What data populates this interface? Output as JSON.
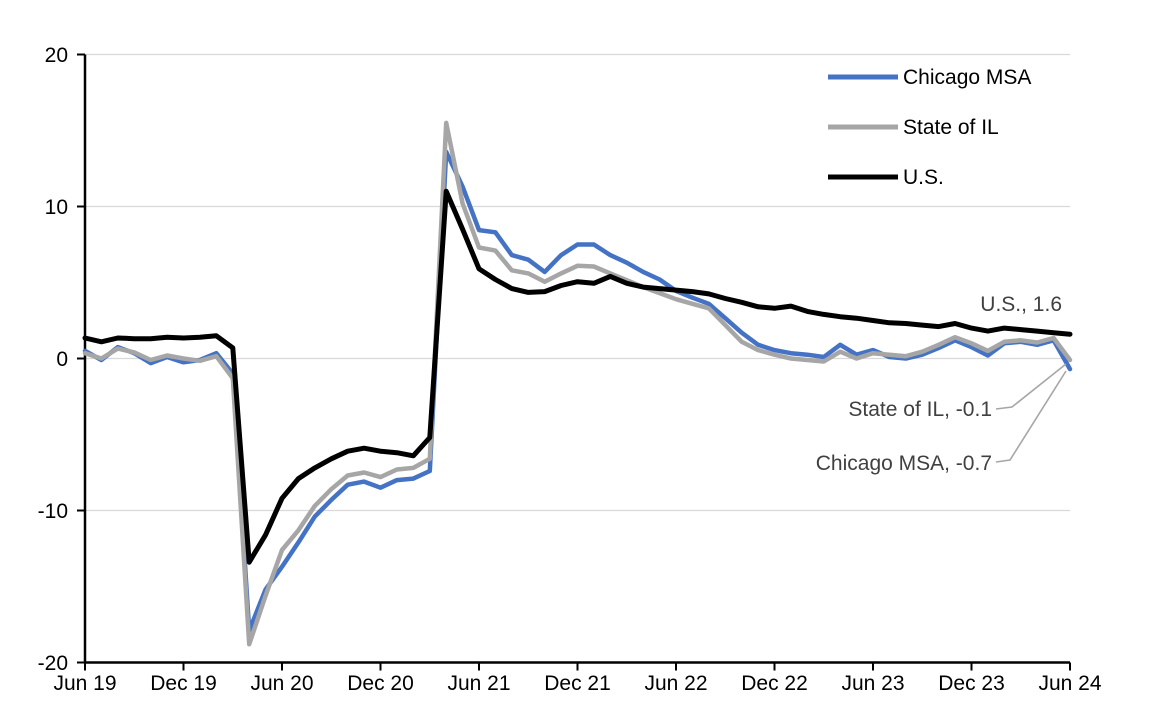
{
  "chart_data": {
    "type": "line",
    "title": "",
    "x_frequency": "monthly",
    "n_points": 61,
    "x_tick_labels": [
      "Jun 19",
      "Dec 19",
      "Jun 20",
      "Dec 20",
      "Jun 21",
      "Dec 21",
      "Jun 22",
      "Dec 22",
      "Jun 23",
      "Dec 23",
      "Jun 24"
    ],
    "ylim": [
      -20,
      20
    ],
    "yticks": [
      20,
      10,
      0,
      -10,
      -20
    ],
    "ytick_labels": [
      "20",
      "10",
      "0",
      "-10",
      "-20"
    ],
    "grid": "horizontal",
    "grid_color": "#D9D9D9",
    "axis_color": "#000000",
    "legend_position": "top-right-inside",
    "series": [
      {
        "name": "Chicago MSA",
        "color": "#4472C4",
        "stroke_width": 4.5,
        "end_value": -0.7,
        "values": [
          0.5,
          -0.1,
          0.75,
          0.35,
          -0.3,
          0.1,
          -0.25,
          -0.1,
          0.35,
          -1.0,
          -17.9,
          -15.2,
          -13.7,
          -12.1,
          -10.4,
          -9.3,
          -8.3,
          -8.1,
          -8.5,
          -8.0,
          -7.9,
          -7.4,
          13.6,
          11.3,
          8.45,
          8.3,
          6.8,
          6.5,
          5.7,
          6.8,
          7.5,
          7.5,
          6.8,
          6.3,
          5.7,
          5.2,
          4.45,
          4.0,
          3.6,
          2.65,
          1.7,
          0.9,
          0.55,
          0.35,
          0.25,
          0.1,
          0.9,
          0.25,
          0.55,
          0.1,
          0.0,
          0.25,
          0.7,
          1.2,
          0.75,
          0.2,
          1.0,
          1.1,
          0.9,
          1.2,
          -0.7
        ]
      },
      {
        "name": "State of IL",
        "color": "#A6A6A6",
        "stroke_width": 4.5,
        "end_value": -0.1,
        "values": [
          0.35,
          0.0,
          0.65,
          0.4,
          -0.1,
          0.2,
          0.0,
          -0.15,
          0.15,
          -1.3,
          -18.8,
          -15.6,
          -12.6,
          -11.3,
          -9.7,
          -8.6,
          -7.7,
          -7.5,
          -7.8,
          -7.3,
          -7.2,
          -6.6,
          15.5,
          10.2,
          7.3,
          7.1,
          5.8,
          5.6,
          5.05,
          5.6,
          6.1,
          6.05,
          5.6,
          5.15,
          4.7,
          4.3,
          3.9,
          3.6,
          3.3,
          2.2,
          1.1,
          0.55,
          0.25,
          0.0,
          -0.1,
          -0.2,
          0.45,
          0.0,
          0.35,
          0.25,
          0.15,
          0.45,
          0.9,
          1.4,
          1.0,
          0.5,
          1.1,
          1.2,
          1.05,
          1.35,
          -0.1
        ]
      },
      {
        "name": "U.S.",
        "color": "#000000",
        "stroke_width": 5,
        "end_value": 1.6,
        "values": [
          1.35,
          1.1,
          1.35,
          1.3,
          1.3,
          1.4,
          1.35,
          1.4,
          1.5,
          0.7,
          -13.4,
          -11.6,
          -9.2,
          -7.9,
          -7.2,
          -6.6,
          -6.1,
          -5.9,
          -6.1,
          -6.2,
          -6.4,
          -5.2,
          11.0,
          8.5,
          5.9,
          5.2,
          4.6,
          4.35,
          4.4,
          4.8,
          5.05,
          4.95,
          5.4,
          4.95,
          4.7,
          4.6,
          4.5,
          4.4,
          4.25,
          3.95,
          3.7,
          3.4,
          3.3,
          3.45,
          3.1,
          2.9,
          2.75,
          2.65,
          2.5,
          2.35,
          2.3,
          2.2,
          2.1,
          2.3,
          2.0,
          1.8,
          2.0,
          1.9,
          1.8,
          1.7,
          1.6
        ]
      }
    ],
    "annotations": [
      {
        "text": "U.S., 1.6",
        "series": "U.S.",
        "value": 1.6
      },
      {
        "text": "State of IL, -0.1",
        "series": "State of IL",
        "value": -0.1
      },
      {
        "text": "Chicago MSA, -0.7",
        "series": "Chicago MSA",
        "value": -0.7
      }
    ]
  }
}
